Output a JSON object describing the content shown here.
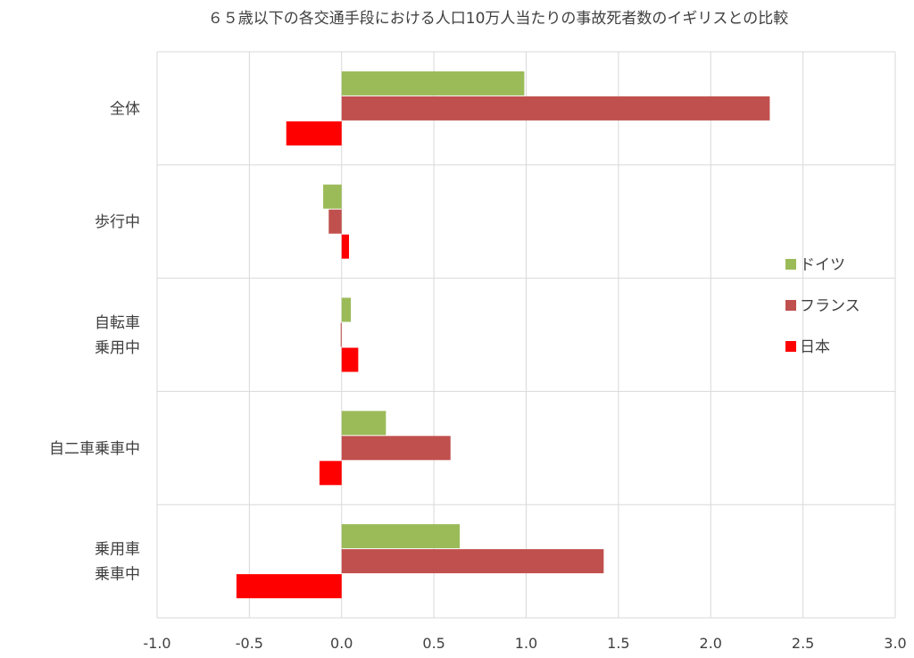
{
  "chart_data": {
    "type": "bar",
    "orientation": "horizontal",
    "title": "６５歳以下の各交通手段における人口10万人当たりの事故死者数のイギリスとの比較",
    "categories": [
      [
        "全体"
      ],
      [
        "歩行中"
      ],
      [
        "自転車",
        "乗用中"
      ],
      [
        "自二車乗車中"
      ],
      [
        "乗用車",
        "乗車中"
      ]
    ],
    "series": [
      {
        "name": "ドイツ",
        "color": "#9BBB59",
        "values": [
          0.99,
          -0.1,
          0.05,
          0.24,
          0.64
        ]
      },
      {
        "name": "フランス",
        "color": "#C0504D",
        "values": [
          2.32,
          -0.07,
          -0.005,
          0.59,
          1.42
        ]
      },
      {
        "name": "日本",
        "color": "#FF0000",
        "values": [
          -0.3,
          0.04,
          0.09,
          -0.12,
          -0.57
        ]
      }
    ],
    "xlim": [
      -1.0,
      3.0
    ],
    "xticks": [
      "-1.0",
      "-0.5",
      "0.0",
      "0.5",
      "1.0",
      "1.5",
      "2.0",
      "2.5",
      "3.0"
    ],
    "xtick_values": [
      -1.0,
      -0.5,
      0.0,
      0.5,
      1.0,
      1.5,
      2.0,
      2.5,
      3.0
    ],
    "grid": true,
    "legend_position": "right"
  }
}
